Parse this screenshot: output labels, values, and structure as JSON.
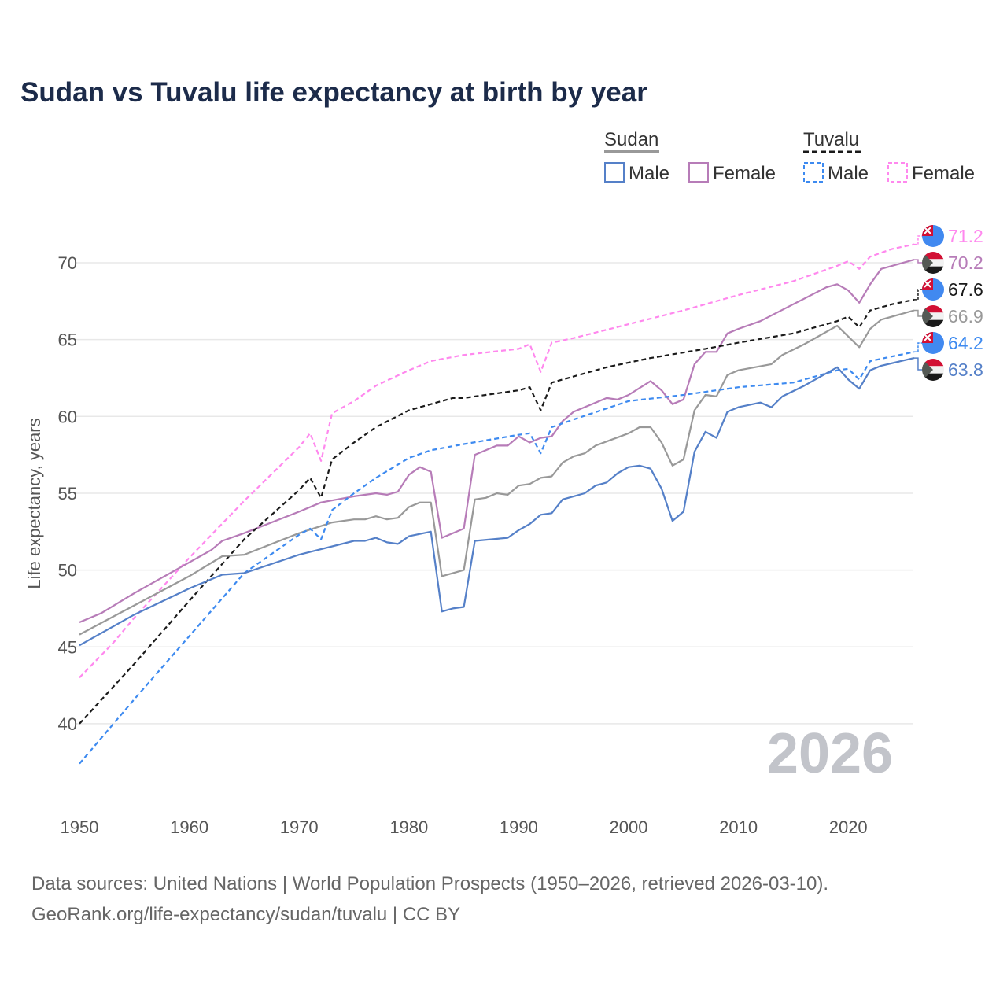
{
  "chart_data": {
    "type": "line",
    "title": "Sudan vs Tuvalu life expectancy at birth by year",
    "xlabel": "",
    "ylabel": "Life expectancy, years",
    "xlim": [
      1950,
      2026
    ],
    "ylim": [
      36,
      74
    ],
    "x_ticks": [
      "1950",
      "1960",
      "1970",
      "1980",
      "1990",
      "2000",
      "2010",
      "2020"
    ],
    "y_ticks": [
      "40",
      "45",
      "50",
      "55",
      "60",
      "65",
      "70"
    ],
    "grid": true,
    "year_watermark": "2026",
    "legend": {
      "placement": "top-right",
      "groups": [
        {
          "name": "Sudan",
          "items": [
            "Male",
            "Female"
          ]
        },
        {
          "name": "Tuvalu",
          "items": [
            "Male",
            "Female"
          ]
        }
      ]
    },
    "series": [
      {
        "name": "Tuvalu Female",
        "color": "#ff88ee",
        "dashed": true,
        "flag": "tuvalu",
        "end_label": "71.2",
        "points": [
          [
            1950,
            43.0
          ],
          [
            1953,
            45.2
          ],
          [
            1955,
            46.9
          ],
          [
            1960,
            50.8
          ],
          [
            1965,
            54.5
          ],
          [
            1970,
            58.0
          ],
          [
            1971,
            58.9
          ],
          [
            1972,
            57.1
          ],
          [
            1973,
            60.2
          ],
          [
            1975,
            61.0
          ],
          [
            1977,
            62.0
          ],
          [
            1980,
            63.0
          ],
          [
            1982,
            63.6
          ],
          [
            1985,
            64.0
          ],
          [
            1990,
            64.4
          ],
          [
            1991,
            64.7
          ],
          [
            1992,
            62.9
          ],
          [
            1993,
            64.8
          ],
          [
            1995,
            65.1
          ],
          [
            2000,
            66.0
          ],
          [
            2005,
            66.9
          ],
          [
            2010,
            67.9
          ],
          [
            2015,
            68.8
          ],
          [
            2019,
            69.8
          ],
          [
            2020,
            70.1
          ],
          [
            2021,
            69.6
          ],
          [
            2022,
            70.4
          ],
          [
            2024,
            70.9
          ],
          [
            2026,
            71.2
          ]
        ]
      },
      {
        "name": "Sudan Female",
        "color": "#b77cb8",
        "dashed": false,
        "flag": "sudan",
        "end_label": "70.2",
        "points": [
          [
            1950,
            46.6
          ],
          [
            1952,
            47.2
          ],
          [
            1955,
            48.5
          ],
          [
            1960,
            50.5
          ],
          [
            1962,
            51.3
          ],
          [
            1963,
            51.9
          ],
          [
            1965,
            52.4
          ],
          [
            1970,
            53.8
          ],
          [
            1972,
            54.4
          ],
          [
            1975,
            54.8
          ],
          [
            1977,
            55.0
          ],
          [
            1978,
            54.9
          ],
          [
            1979,
            55.1
          ],
          [
            1980,
            56.2
          ],
          [
            1981,
            56.7
          ],
          [
            1982,
            56.4
          ],
          [
            1983,
            52.1
          ],
          [
            1985,
            52.7
          ],
          [
            1986,
            57.5
          ],
          [
            1988,
            58.1
          ],
          [
            1989,
            58.1
          ],
          [
            1990,
            58.7
          ],
          [
            1991,
            58.3
          ],
          [
            1992,
            58.6
          ],
          [
            1993,
            58.7
          ],
          [
            1994,
            59.7
          ],
          [
            1995,
            60.3
          ],
          [
            1998,
            61.2
          ],
          [
            1999,
            61.1
          ],
          [
            2000,
            61.4
          ],
          [
            2002,
            62.3
          ],
          [
            2003,
            61.7
          ],
          [
            2004,
            60.8
          ],
          [
            2005,
            61.1
          ],
          [
            2006,
            63.4
          ],
          [
            2007,
            64.2
          ],
          [
            2008,
            64.2
          ],
          [
            2009,
            65.4
          ],
          [
            2010,
            65.7
          ],
          [
            2012,
            66.2
          ],
          [
            2015,
            67.3
          ],
          [
            2018,
            68.4
          ],
          [
            2019,
            68.6
          ],
          [
            2020,
            68.2
          ],
          [
            2021,
            67.4
          ],
          [
            2022,
            68.6
          ],
          [
            2023,
            69.6
          ],
          [
            2026,
            70.2
          ]
        ]
      },
      {
        "name": "Tuvalu",
        "color": "#1a1a1a",
        "dashed": true,
        "flag": "tuvalu",
        "end_label": "67.6",
        "points": [
          [
            1950,
            40.0
          ],
          [
            1955,
            43.9
          ],
          [
            1960,
            48.0
          ],
          [
            1965,
            52.0
          ],
          [
            1970,
            55.2
          ],
          [
            1971,
            56.0
          ],
          [
            1972,
            54.7
          ],
          [
            1973,
            57.2
          ],
          [
            1975,
            58.3
          ],
          [
            1977,
            59.3
          ],
          [
            1980,
            60.4
          ],
          [
            1984,
            61.2
          ],
          [
            1985,
            61.2
          ],
          [
            1990,
            61.7
          ],
          [
            1991,
            61.9
          ],
          [
            1992,
            60.4
          ],
          [
            1993,
            62.2
          ],
          [
            1995,
            62.6
          ],
          [
            1998,
            63.2
          ],
          [
            2000,
            63.5
          ],
          [
            2002,
            63.8
          ],
          [
            2007,
            64.4
          ],
          [
            2010,
            64.8
          ],
          [
            2015,
            65.4
          ],
          [
            2019,
            66.2
          ],
          [
            2020,
            66.5
          ],
          [
            2021,
            65.8
          ],
          [
            2022,
            66.9
          ],
          [
            2024,
            67.3
          ],
          [
            2026,
            67.6
          ]
        ]
      },
      {
        "name": "Sudan",
        "color": "#999999",
        "dashed": false,
        "flag": "sudan",
        "end_label": "66.9",
        "points": [
          [
            1950,
            45.8
          ],
          [
            1955,
            47.7
          ],
          [
            1960,
            49.6
          ],
          [
            1963,
            50.9
          ],
          [
            1965,
            51.0
          ],
          [
            1970,
            52.4
          ],
          [
            1973,
            53.1
          ],
          [
            1975,
            53.3
          ],
          [
            1976,
            53.3
          ],
          [
            1977,
            53.5
          ],
          [
            1978,
            53.3
          ],
          [
            1979,
            53.4
          ],
          [
            1980,
            54.1
          ],
          [
            1981,
            54.4
          ],
          [
            1982,
            54.4
          ],
          [
            1983,
            49.6
          ],
          [
            1985,
            50.0
          ],
          [
            1986,
            54.6
          ],
          [
            1987,
            54.7
          ],
          [
            1988,
            55.0
          ],
          [
            1989,
            54.9
          ],
          [
            1990,
            55.5
          ],
          [
            1991,
            55.6
          ],
          [
            1992,
            56.0
          ],
          [
            1993,
            56.1
          ],
          [
            1994,
            57.0
          ],
          [
            1995,
            57.4
          ],
          [
            1996,
            57.6
          ],
          [
            1997,
            58.1
          ],
          [
            2000,
            58.9
          ],
          [
            2001,
            59.3
          ],
          [
            2002,
            59.3
          ],
          [
            2003,
            58.3
          ],
          [
            2004,
            56.8
          ],
          [
            2005,
            57.2
          ],
          [
            2006,
            60.4
          ],
          [
            2007,
            61.4
          ],
          [
            2008,
            61.3
          ],
          [
            2009,
            62.7
          ],
          [
            2010,
            63.0
          ],
          [
            2013,
            63.4
          ],
          [
            2014,
            64.0
          ],
          [
            2016,
            64.7
          ],
          [
            2019,
            65.9
          ],
          [
            2020,
            65.2
          ],
          [
            2021,
            64.5
          ],
          [
            2022,
            65.7
          ],
          [
            2023,
            66.3
          ],
          [
            2026,
            66.9
          ]
        ]
      },
      {
        "name": "Tuvalu Male",
        "color": "#3d8af0",
        "dashed": true,
        "flag": "tuvalu",
        "end_label": "64.2",
        "points": [
          [
            1950,
            37.4
          ],
          [
            1955,
            41.6
          ],
          [
            1960,
            45.7
          ],
          [
            1965,
            49.8
          ],
          [
            1970,
            52.3
          ],
          [
            1971,
            52.7
          ],
          [
            1972,
            52.0
          ],
          [
            1973,
            53.9
          ],
          [
            1975,
            55.0
          ],
          [
            1977,
            56.0
          ],
          [
            1980,
            57.3
          ],
          [
            1982,
            57.8
          ],
          [
            1985,
            58.2
          ],
          [
            1990,
            58.8
          ],
          [
            1991,
            58.9
          ],
          [
            1992,
            57.6
          ],
          [
            1993,
            59.3
          ],
          [
            1995,
            59.8
          ],
          [
            2000,
            61.0
          ],
          [
            2005,
            61.4
          ],
          [
            2010,
            61.9
          ],
          [
            2015,
            62.2
          ],
          [
            2019,
            63.0
          ],
          [
            2020,
            63.1
          ],
          [
            2021,
            62.4
          ],
          [
            2022,
            63.6
          ],
          [
            2024,
            63.9
          ],
          [
            2026,
            64.2
          ]
        ]
      },
      {
        "name": "Sudan Male",
        "color": "#5580c8",
        "dashed": false,
        "flag": "sudan",
        "end_label": "63.8",
        "points": [
          [
            1950,
            45.1
          ],
          [
            1955,
            47.1
          ],
          [
            1960,
            48.8
          ],
          [
            1963,
            49.7
          ],
          [
            1965,
            49.8
          ],
          [
            1970,
            51.0
          ],
          [
            1975,
            51.9
          ],
          [
            1976,
            51.9
          ],
          [
            1977,
            52.1
          ],
          [
            1978,
            51.8
          ],
          [
            1979,
            51.7
          ],
          [
            1980,
            52.2
          ],
          [
            1982,
            52.5
          ],
          [
            1983,
            47.3
          ],
          [
            1984,
            47.5
          ],
          [
            1985,
            47.6
          ],
          [
            1986,
            51.9
          ],
          [
            1989,
            52.1
          ],
          [
            1990,
            52.6
          ],
          [
            1991,
            53.0
          ],
          [
            1992,
            53.6
          ],
          [
            1993,
            53.7
          ],
          [
            1994,
            54.6
          ],
          [
            1995,
            54.8
          ],
          [
            1996,
            55.0
          ],
          [
            1997,
            55.5
          ],
          [
            1998,
            55.7
          ],
          [
            1999,
            56.3
          ],
          [
            2000,
            56.7
          ],
          [
            2001,
            56.8
          ],
          [
            2002,
            56.6
          ],
          [
            2003,
            55.3
          ],
          [
            2004,
            53.2
          ],
          [
            2005,
            53.8
          ],
          [
            2006,
            57.7
          ],
          [
            2007,
            59.0
          ],
          [
            2008,
            58.6
          ],
          [
            2009,
            60.3
          ],
          [
            2010,
            60.6
          ],
          [
            2012,
            60.9
          ],
          [
            2013,
            60.6
          ],
          [
            2014,
            61.3
          ],
          [
            2016,
            62.0
          ],
          [
            2019,
            63.2
          ],
          [
            2020,
            62.4
          ],
          [
            2021,
            61.8
          ],
          [
            2022,
            63.0
          ],
          [
            2023,
            63.3
          ],
          [
            2026,
            63.8
          ]
        ]
      }
    ]
  },
  "footer": {
    "line1": "Data sources: United Nations | World Population Prospects (1950–2026, retrieved 2026-03-10).",
    "line2": "GeoRank.org/life-expectancy/sudan/tuvalu | CC BY"
  }
}
